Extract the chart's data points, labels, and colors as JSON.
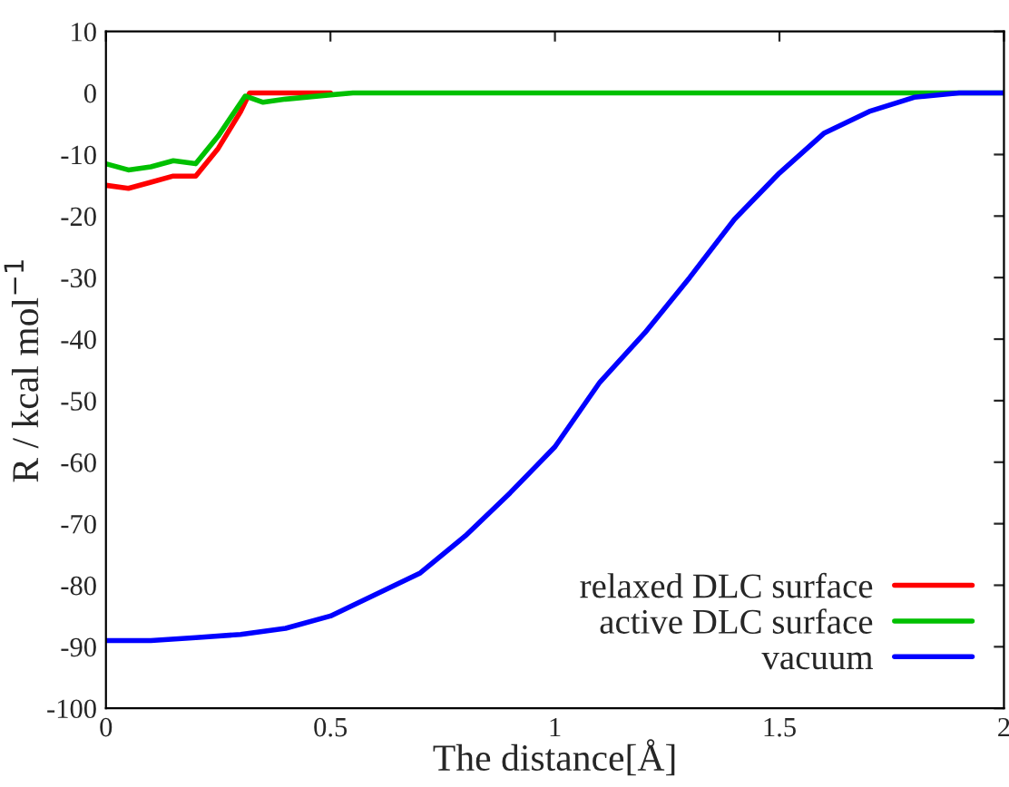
{
  "chart_data": {
    "type": "line",
    "xlabel": "The distance[Å]",
    "ylabel": "R / kcal mol$^{−1}$",
    "xlim": [
      0,
      2
    ],
    "xticks": [
      0,
      0.5,
      1,
      1.5,
      2
    ],
    "ylim": [
      -100,
      10
    ],
    "yticks": [
      -100,
      -90,
      -80,
      -70,
      -60,
      -50,
      -40,
      -30,
      -20,
      -10,
      0,
      10
    ],
    "grid": false,
    "legend": "bottom right",
    "marker": "none",
    "line_style": "solid",
    "series": [
      {
        "name": "relaxed DLC surface",
        "color": "#ff0000",
        "x": [
          0,
          0.05,
          0.1,
          0.15,
          0.2,
          0.25,
          0.3,
          0.32,
          0.5
        ],
        "values": [
          -15,
          -15.5,
          -14.5,
          -13.5,
          -13.5,
          -9,
          -3,
          0,
          0
        ]
      },
      {
        "name": "active DLC surface",
        "color": "#00c000",
        "x": [
          0,
          0.05,
          0.1,
          0.15,
          0.2,
          0.25,
          0.31,
          0.35,
          0.4,
          0.5,
          0.55,
          1,
          1.5,
          2
        ],
        "values": [
          -11.5,
          -12.5,
          -12,
          -11,
          -11.5,
          -7,
          -0.5,
          -1.5,
          -1,
          -0.3,
          0,
          0,
          0,
          0
        ]
      },
      {
        "name": "vacuum",
        "color": "#0000ff",
        "x": [
          0,
          0.1,
          0.2,
          0.3,
          0.4,
          0.5,
          0.6,
          0.7,
          0.8,
          0.9,
          1.0,
          1.1,
          1.2,
          1.3,
          1.4,
          1.5,
          1.6,
          1.7,
          1.8,
          1.9,
          2.0
        ],
        "values": [
          -89,
          -89,
          -88.5,
          -88,
          -87,
          -85,
          -81.5,
          -78,
          -72,
          -65,
          -57.5,
          -47,
          -39,
          -30,
          -20.5,
          -13,
          -6.5,
          -3,
          -0.7,
          0,
          0
        ]
      }
    ]
  }
}
